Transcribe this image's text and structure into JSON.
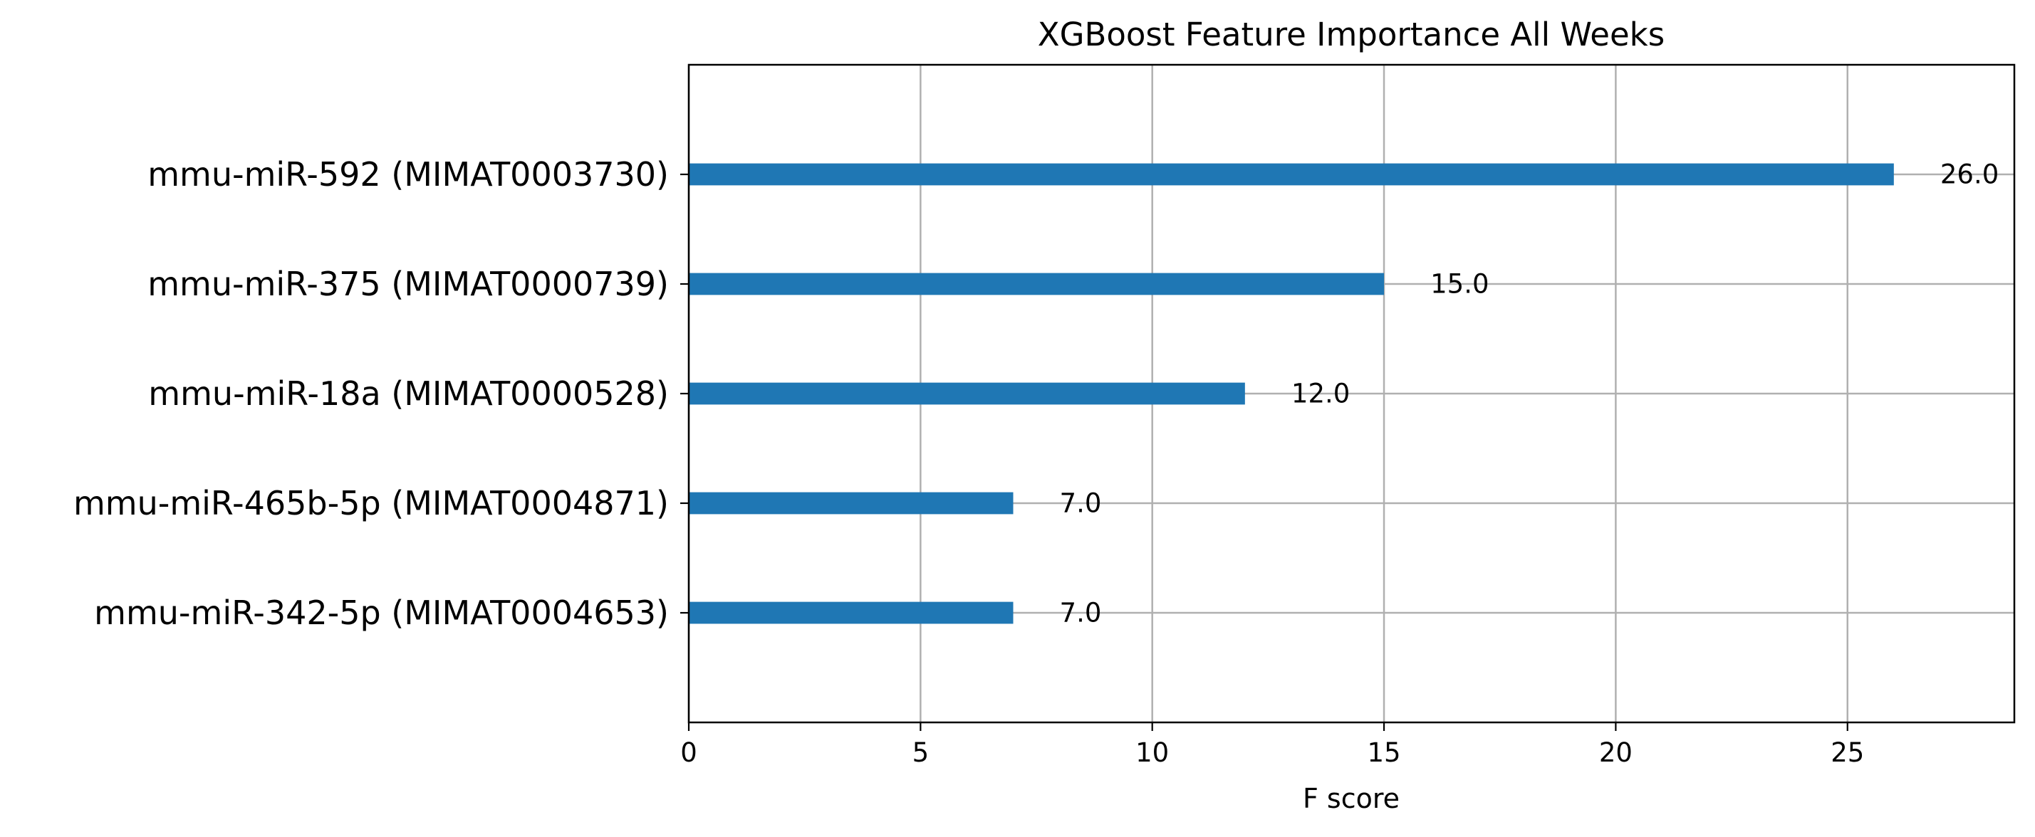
{
  "chart_data": {
    "type": "bar",
    "orientation": "horizontal",
    "title": "XGBoost Feature Importance All Weeks",
    "xlabel": "F score",
    "ylabel": "",
    "categories": [
      "mmu-miR-592 (MIMAT0003730)",
      "mmu-miR-375 (MIMAT0000739)",
      "mmu-miR-18a (MIMAT0000528)",
      "mmu-miR-465b-5p (MIMAT0004871)",
      "mmu-miR-342-5p (MIMAT0004653)"
    ],
    "values": [
      26,
      15,
      12,
      7,
      7
    ],
    "value_labels": [
      "26.0",
      "15.0",
      "12.0",
      "7.0",
      "7.0"
    ],
    "xlim": [
      0,
      28.6
    ],
    "xticks": [
      0,
      5,
      10,
      15,
      20,
      25
    ],
    "xtick_labels": [
      "0",
      "5",
      "10",
      "15",
      "20",
      "25"
    ],
    "grid": true,
    "bar_color": "#1f77b4"
  }
}
